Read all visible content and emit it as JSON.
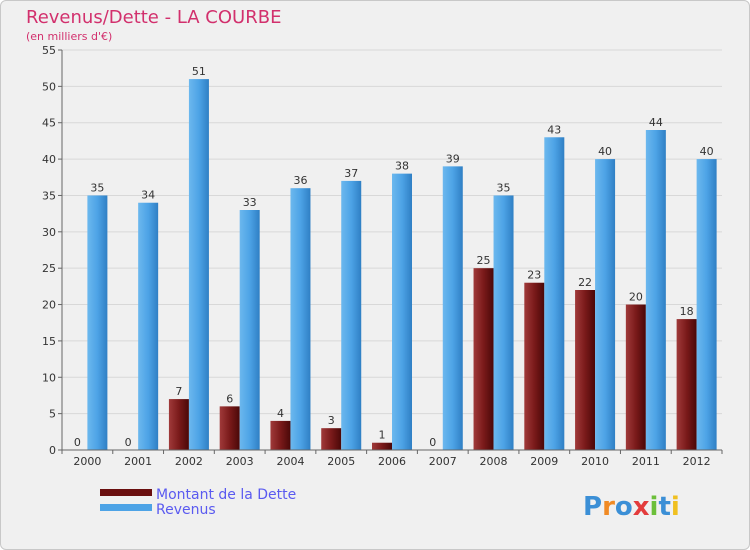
{
  "chart_data": {
    "type": "bar",
    "title": "Revenus/Dette - LA COURBE",
    "subtitle": "(en milliers d'€)",
    "categories": [
      "2000",
      "2001",
      "2002",
      "2003",
      "2004",
      "2005",
      "2006",
      "2007",
      "2008",
      "2009",
      "2010",
      "2011",
      "2012"
    ],
    "series": [
      {
        "name": "Montant de la Dette",
        "color": "#7a1a1a",
        "values": [
          0,
          0,
          7,
          6,
          4,
          3,
          1,
          0,
          25,
          23,
          22,
          20,
          18
        ]
      },
      {
        "name": "Revenus",
        "color": "#4da3e6",
        "values": [
          35,
          34,
          51,
          33,
          36,
          37,
          38,
          39,
          35,
          43,
          40,
          44,
          40
        ]
      }
    ],
    "ylim": [
      0,
      55
    ],
    "yticks": [
      0,
      5,
      10,
      15,
      20,
      25,
      30,
      35,
      40,
      45,
      50,
      55
    ],
    "grid": true,
    "legend_position": "bottom-left"
  },
  "logo": {
    "text": "Proxiti",
    "letters": [
      "P",
      "r",
      "o",
      "x",
      "i",
      "t",
      "i"
    ],
    "colors": [
      "#3b8fd6",
      "#f08a24",
      "#3b8fd6",
      "#e33c3c",
      "#6cbf3a",
      "#3b8fd6",
      "#f0c020"
    ]
  }
}
